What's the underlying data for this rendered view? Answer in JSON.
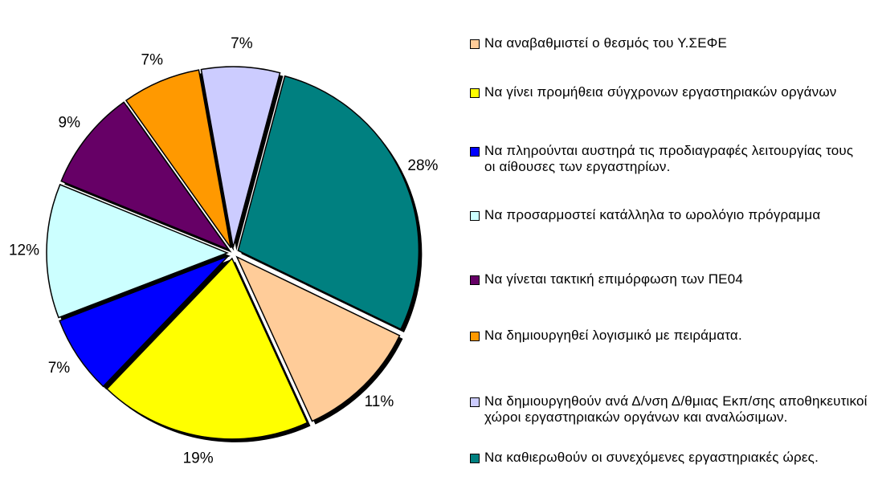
{
  "chart_data": {
    "type": "pie",
    "categories": [
      "Να αναβαθμιστεί ο θεσμός  του Υ.ΣΕΦΕ",
      "Να γίνει προμήθεια σύγχρονων εργαστηριακών οργάνων",
      "Να πληρούνται αυστηρά τις προδιαγραφές λειτουργίας τους οι αίθουσες των εργαστηρίων.",
      "Να προσαρμοστεί κατάλληλα το ωρολόγιο πρόγραμμα",
      "Να γίνεται τακτική επιμόρφωση των ΠΕ04",
      "Να δημιουργηθεί λογισμικό με πειράματα.",
      "Να δημιουργηθούν ανά Δ/νση Δ/θμιας Εκπ/σης αποθηκευτικοί χώροι εργαστηριακών οργάνων και αναλώσιμων.",
      "Να καθιερωθούν οι συνεχόμενες εργαστηριακές ώρες."
    ],
    "values": [
      11,
      19,
      7,
      12,
      9,
      7,
      7,
      28
    ],
    "value_labels": [
      "11%",
      "19%",
      "7%",
      "12%",
      "9%",
      "7%",
      "7%",
      "28%"
    ],
    "colors": [
      "#ffcc99",
      "#ffff00",
      "#0000ff",
      "#ccffff",
      "#660066",
      "#ff9900",
      "#ccccff",
      "#008080"
    ],
    "legend": "right"
  }
}
